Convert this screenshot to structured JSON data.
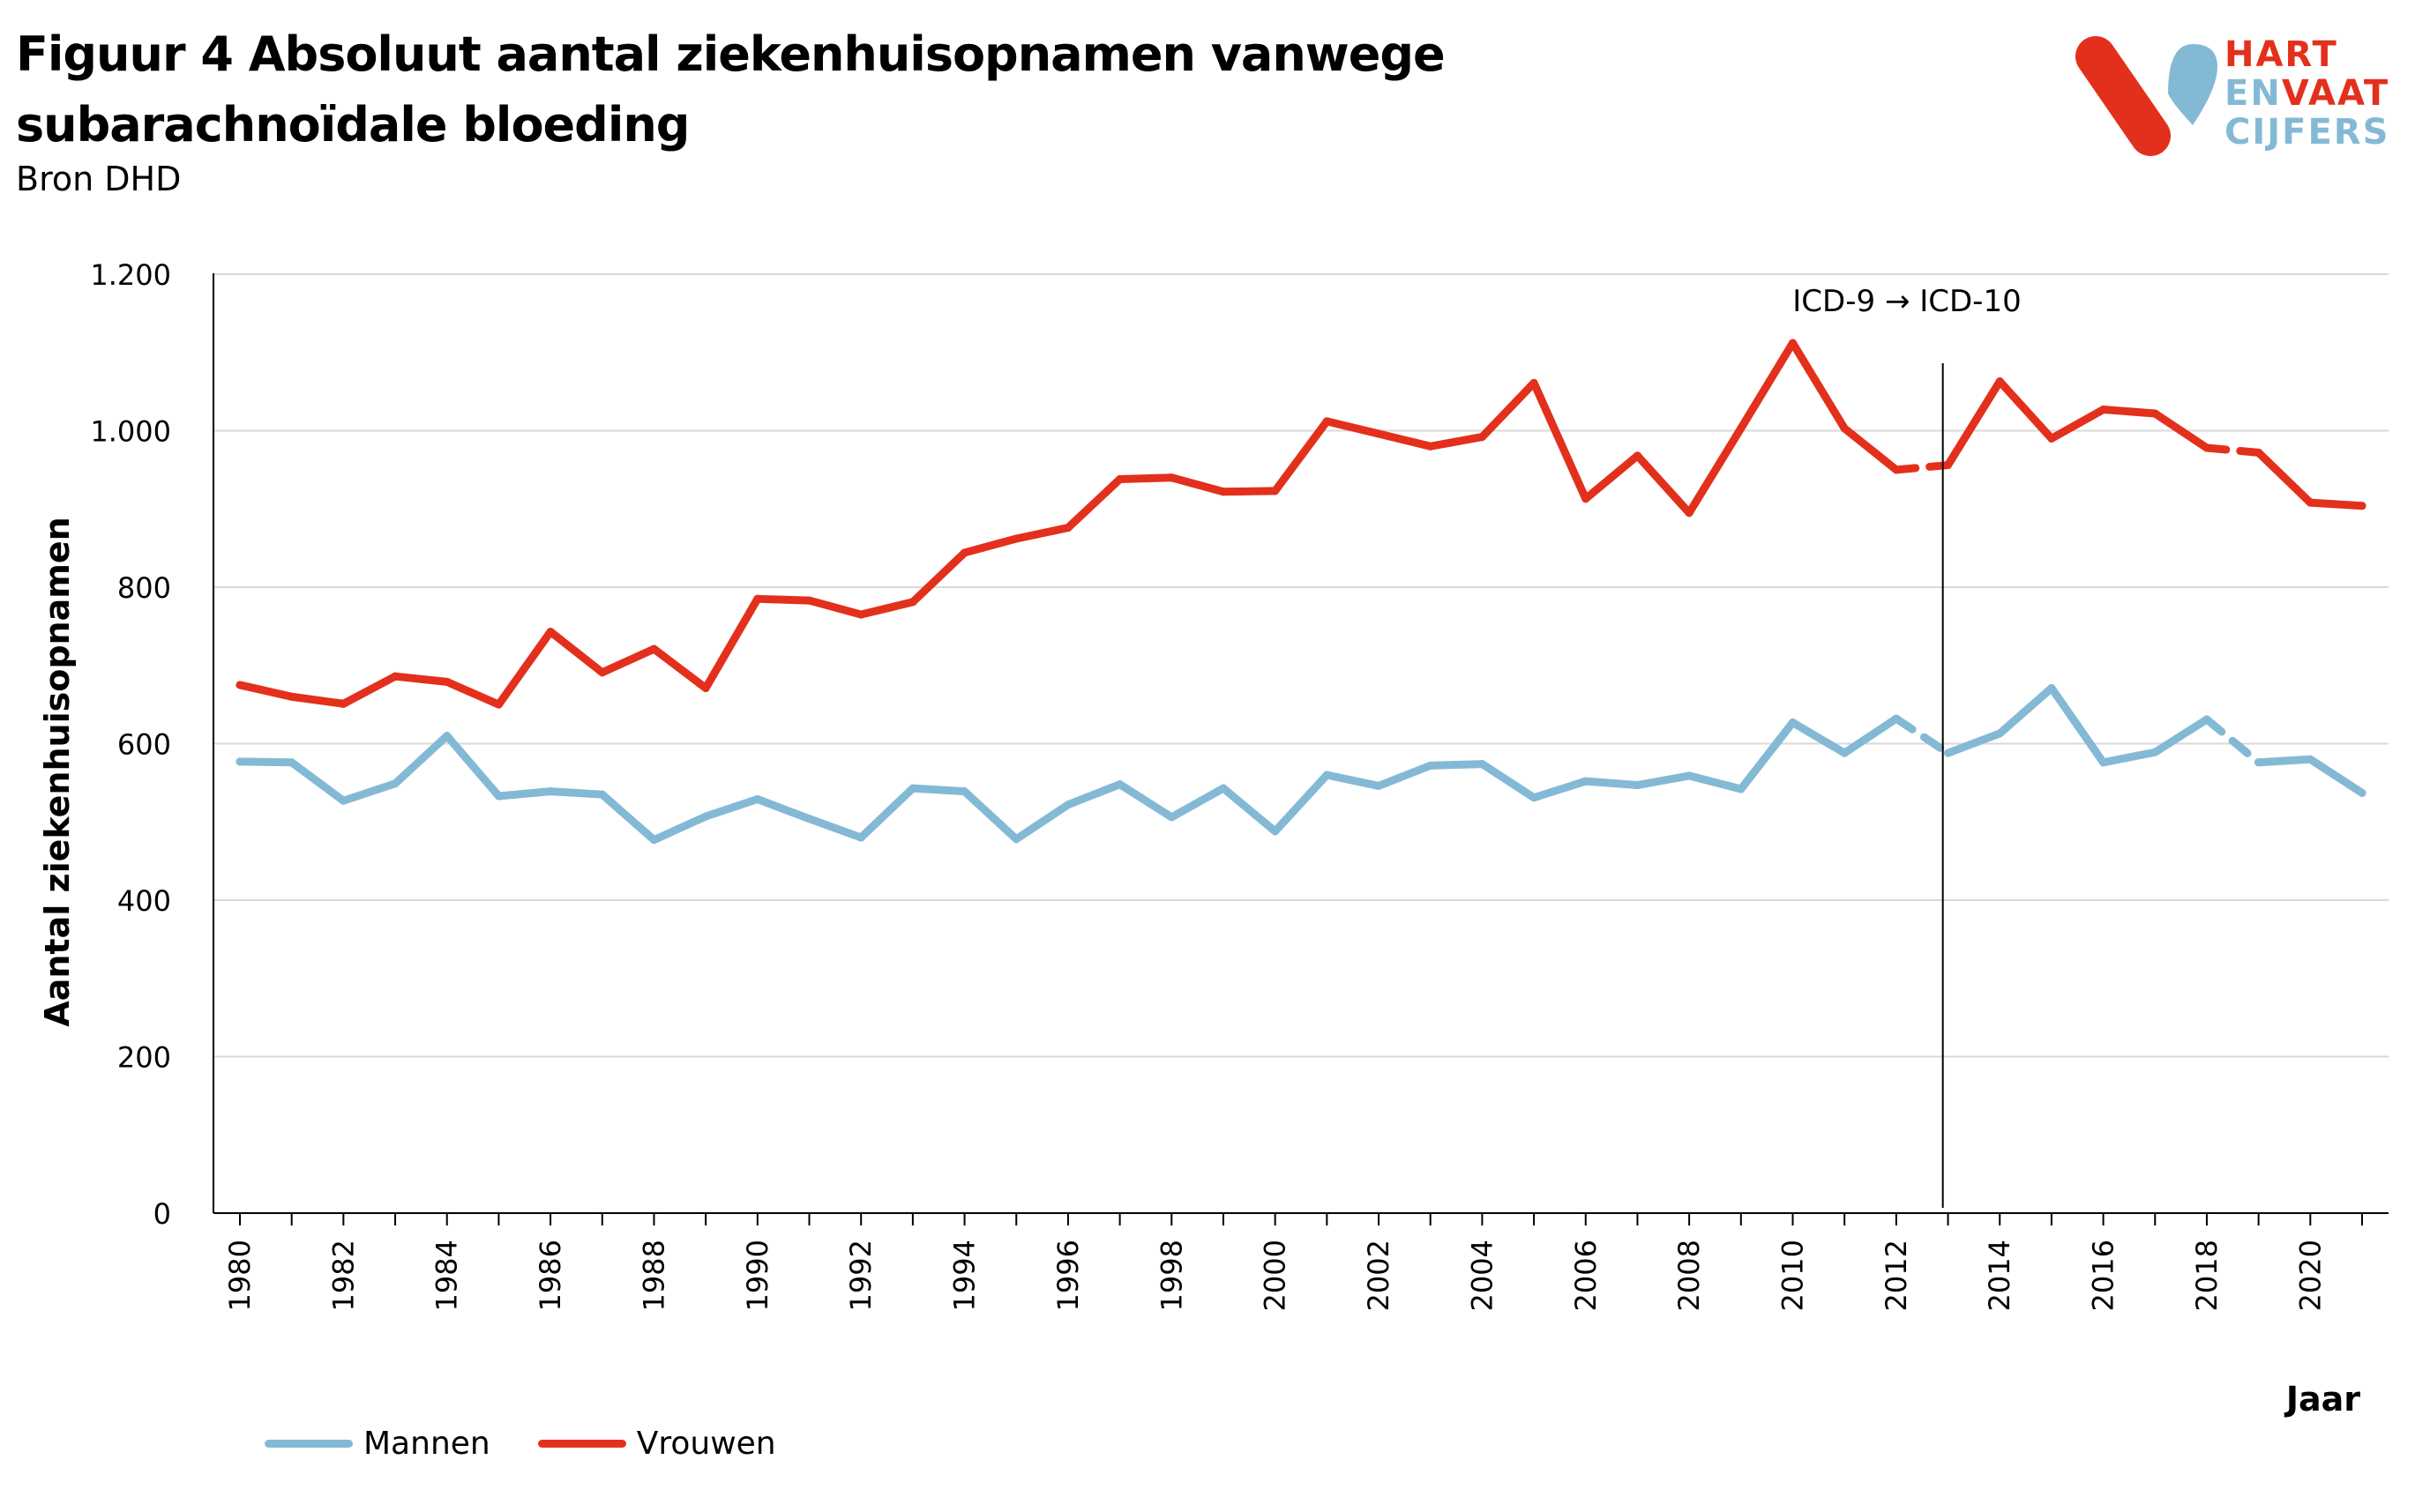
{
  "header": {
    "title": "Figuur 4 Absoluut aantal ziekenhuisopnamen vanwege subarachnoïdale bloeding",
    "source": "Bron DHD"
  },
  "logo": {
    "line1": "HART",
    "line2a": "EN",
    "line2b": "VAAT",
    "line3": "CIJFERS",
    "colors": {
      "red": "#e3301c",
      "blue": "#84b9d6"
    }
  },
  "chart_data": {
    "type": "line",
    "title": "Figuur 4 Absoluut aantal ziekenhuisopnamen vanwege subarachnoïdale bloeding",
    "xlabel": "Jaar",
    "ylabel": "Aantal ziekenhuisopnamen",
    "ylim": [
      0,
      1200
    ],
    "yticks": [
      0,
      200,
      400,
      600,
      800,
      1000,
      1200
    ],
    "ytick_labels": [
      "0",
      "200",
      "400",
      "600",
      "800",
      "1.000",
      "1.200"
    ],
    "x": [
      1980,
      1981,
      1982,
      1983,
      1984,
      1985,
      1986,
      1987,
      1988,
      1989,
      1990,
      1991,
      1992,
      1993,
      1994,
      1995,
      1996,
      1997,
      1998,
      1999,
      2000,
      2001,
      2002,
      2003,
      2004,
      2005,
      2006,
      2007,
      2008,
      2009,
      2010,
      2011,
      2012,
      2013,
      2014,
      2015,
      2016,
      2017,
      2018,
      2019,
      2020,
      2021
    ],
    "xtick_labels": [
      "1980",
      "1982",
      "1984",
      "1986",
      "1988",
      "1990",
      "1992",
      "1994",
      "1996",
      "1998",
      "2000",
      "2002",
      "2004",
      "2006",
      "2008",
      "2010",
      "2012",
      "2014",
      "2016",
      "2018",
      "2020"
    ],
    "grid": "horizontal",
    "legend_position": "bottom-left",
    "annotation": {
      "text": "ICD-9 → ICD-10",
      "at_x": 2012.9
    },
    "dashed_segments": [
      [
        2012,
        2013
      ],
      [
        2018,
        2019
      ]
    ],
    "series": [
      {
        "name": "Mannen",
        "color": "#84b9d6",
        "values": [
          577,
          576,
          527,
          549,
          610,
          533,
          539,
          535,
          477,
          507,
          529,
          504,
          480,
          543,
          539,
          478,
          522,
          548,
          506,
          543,
          488,
          560,
          546,
          572,
          574,
          531,
          552,
          547,
          559,
          542,
          627,
          588,
          632,
          588,
          613,
          671,
          576,
          589,
          631,
          576,
          580,
          537
        ]
      },
      {
        "name": "Vrouwen",
        "color": "#e3301c",
        "values": [
          675,
          660,
          651,
          686,
          679,
          650,
          743,
          691,
          721,
          671,
          785,
          783,
          765,
          781,
          844,
          862,
          876,
          938,
          940,
          922,
          923,
          1012,
          996,
          980,
          992,
          1061,
          913,
          968,
          895,
          1003,
          1112,
          1003,
          950,
          956,
          1063,
          990,
          1027,
          1022,
          978,
          972,
          908,
          904
        ]
      }
    ]
  }
}
